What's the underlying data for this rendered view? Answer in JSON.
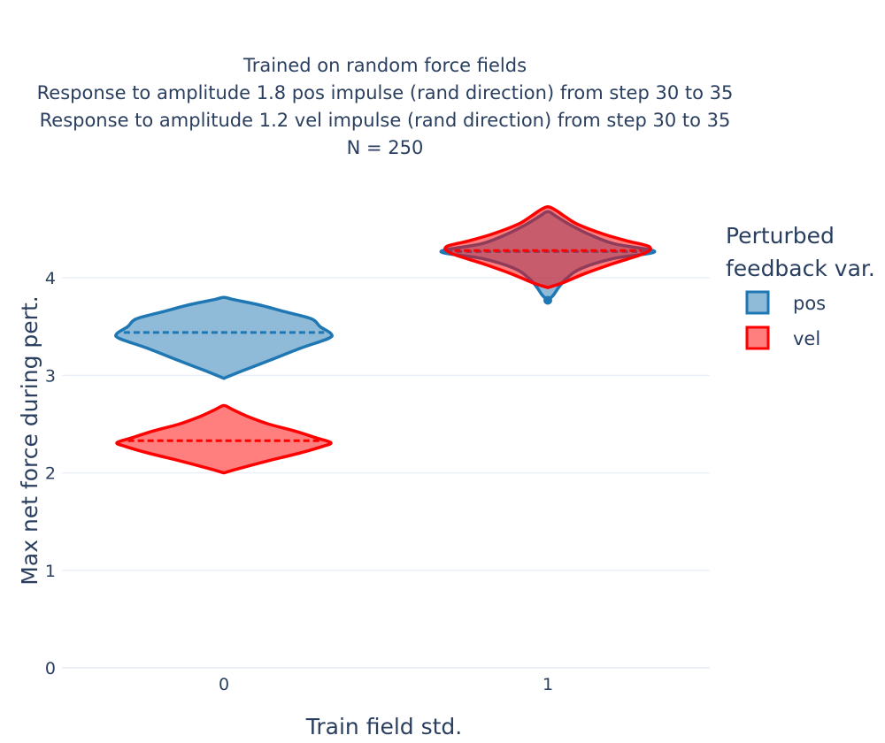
{
  "chart_data": {
    "type": "violin",
    "title_lines": [
      "Trained on random force fields",
      "Response to amplitude 1.8 pos impulse (rand direction) from step 30 to 35",
      "Response to amplitude 1.2 vel impulse (rand direction) from step 30 to 35",
      "N = 250"
    ],
    "xlabel": "Train field std.",
    "ylabel": "Max net force during pert.",
    "categories": [
      "0",
      "1"
    ],
    "ylim": [
      0,
      4.8
    ],
    "yticks": [
      0,
      1,
      2,
      3,
      4
    ],
    "grid": true,
    "legend": {
      "title_lines": [
        "Perturbed",
        "feedback var."
      ],
      "placement": "right"
    },
    "series": [
      {
        "name": "pos",
        "color": "#1f77b4",
        "fill": "rgba(31,119,180,0.5)",
        "violins": [
          {
            "category": "0",
            "min": 2.97,
            "max": 3.8,
            "mean": 3.44,
            "profile": [
              [
                2.97,
                0.0
              ],
              [
                3.05,
                0.18
              ],
              [
                3.15,
                0.42
              ],
              [
                3.28,
                0.72
              ],
              [
                3.38,
                0.98
              ],
              [
                3.43,
                1.0
              ],
              [
                3.5,
                0.9
              ],
              [
                3.58,
                0.82
              ],
              [
                3.65,
                0.58
              ],
              [
                3.72,
                0.34
              ],
              [
                3.78,
                0.08
              ],
              [
                3.8,
                0.0
              ]
            ]
          },
          {
            "category": "1",
            "min": 3.77,
            "max": 4.68,
            "mean": 4.27,
            "profile": [
              [
                3.77,
                0.0
              ],
              [
                3.82,
                0.05
              ],
              [
                3.9,
                0.1
              ],
              [
                4.0,
                0.18
              ],
              [
                4.1,
                0.32
              ],
              [
                4.2,
                0.62
              ],
              [
                4.27,
                1.0
              ],
              [
                4.35,
                0.62
              ],
              [
                4.45,
                0.38
              ],
              [
                4.55,
                0.2
              ],
              [
                4.63,
                0.08
              ],
              [
                4.68,
                0.0
              ]
            ]
          }
        ],
        "outliers": [
          {
            "category": "1",
            "value": 3.77
          }
        ]
      },
      {
        "name": "vel",
        "color": "#ff0000",
        "fill": "rgba(255,0,0,0.5)",
        "violins": [
          {
            "category": "0",
            "min": 2.0,
            "max": 2.69,
            "mean": 2.33,
            "profile": [
              [
                2.0,
                0.0
              ],
              [
                2.05,
                0.16
              ],
              [
                2.12,
                0.4
              ],
              [
                2.2,
                0.7
              ],
              [
                2.27,
                0.92
              ],
              [
                2.31,
                1.0
              ],
              [
                2.36,
                0.86
              ],
              [
                2.43,
                0.66
              ],
              [
                2.5,
                0.42
              ],
              [
                2.58,
                0.22
              ],
              [
                2.65,
                0.08
              ],
              [
                2.69,
                0.0
              ]
            ]
          },
          {
            "category": "1",
            "min": 3.9,
            "max": 4.73,
            "mean": 4.28,
            "profile": [
              [
                3.9,
                0.0
              ],
              [
                3.95,
                0.14
              ],
              [
                4.05,
                0.36
              ],
              [
                4.15,
                0.62
              ],
              [
                4.25,
                0.9
              ],
              [
                4.32,
                0.95
              ],
              [
                4.38,
                0.74
              ],
              [
                4.45,
                0.52
              ],
              [
                4.55,
                0.28
              ],
              [
                4.63,
                0.16
              ],
              [
                4.69,
                0.08
              ],
              [
                4.73,
                0.0
              ]
            ]
          }
        ]
      }
    ]
  }
}
